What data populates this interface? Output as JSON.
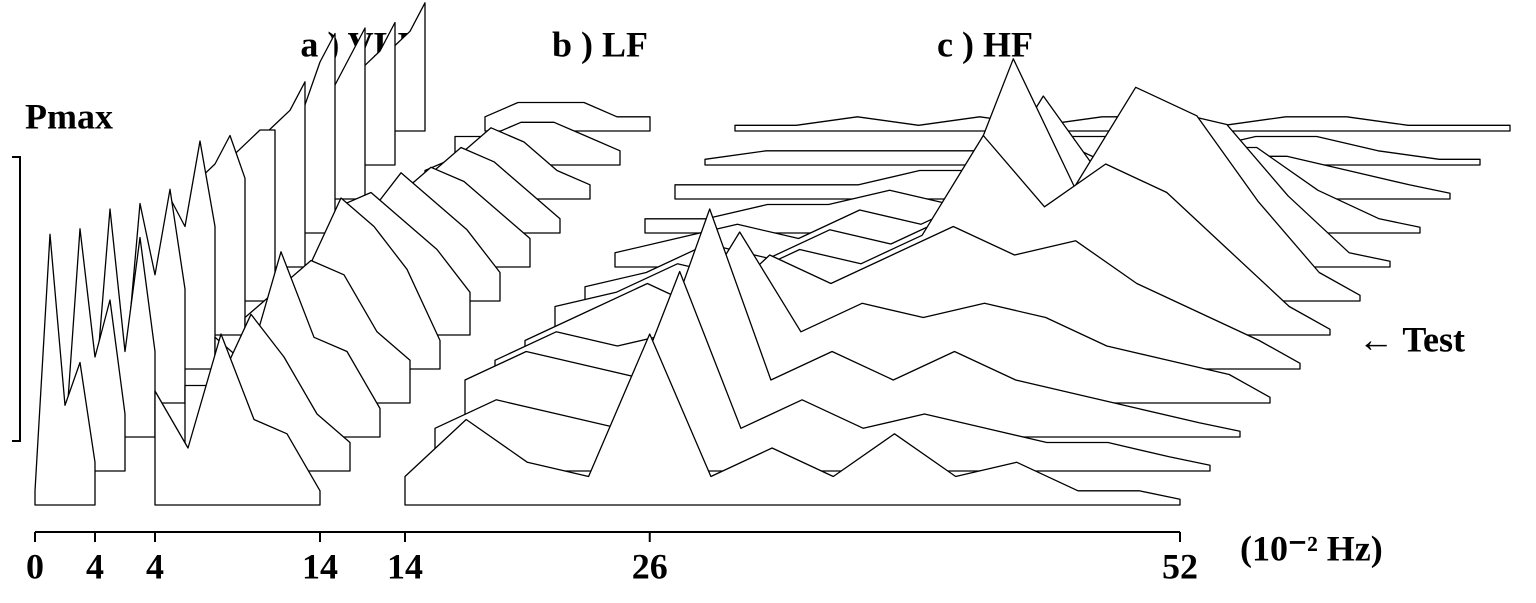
{
  "chart_data": {
    "type": "waterfall",
    "y_label": "Pmax",
    "x_label": "(10⁻² Hz)",
    "annotation": "← Test",
    "color": "#000000",
    "ylim": [
      0,
      1
    ],
    "panels": [
      {
        "title": "a ) VLF",
        "xlim": [
          0,
          4
        ],
        "xticks": [
          0,
          4
        ],
        "x": [
          0,
          1,
          2,
          3,
          4
        ],
        "traces": [
          [
            0.05,
            0.95,
            0.35,
            0.5,
            0.15
          ],
          [
            0.1,
            0.85,
            0.4,
            0.6,
            0.2
          ],
          [
            0.15,
            0.8,
            0.3,
            0.7,
            0.3
          ],
          [
            0.1,
            0.7,
            0.45,
            0.75,
            0.4
          ],
          [
            0.2,
            0.6,
            0.5,
            0.8,
            0.5
          ],
          [
            0.15,
            0.55,
            0.6,
            0.7,
            0.55
          ],
          [
            0.25,
            0.5,
            0.55,
            0.6,
            0.6
          ],
          [
            0.2,
            0.45,
            0.5,
            0.55,
            0.65
          ],
          [
            0.3,
            0.4,
            0.45,
            0.6,
            0.7
          ],
          [
            0.25,
            0.35,
            0.4,
            0.5,
            0.6
          ],
          [
            0.2,
            0.3,
            0.35,
            0.4,
            0.5
          ],
          [
            0.15,
            0.25,
            0.3,
            0.35,
            0.45
          ]
        ]
      },
      {
        "title": "b ) LF",
        "xlim": [
          4,
          14
        ],
        "xticks": [
          4,
          14
        ],
        "x": [
          4,
          6,
          8,
          10,
          12,
          14
        ],
        "traces": [
          [
            0.4,
            0.2,
            0.6,
            0.3,
            0.25,
            0.05
          ],
          [
            0.3,
            0.3,
            0.55,
            0.4,
            0.2,
            0.1
          ],
          [
            0.35,
            0.25,
            0.65,
            0.35,
            0.3,
            0.1
          ],
          [
            0.3,
            0.4,
            0.5,
            0.45,
            0.25,
            0.15
          ],
          [
            0.25,
            0.35,
            0.6,
            0.5,
            0.35,
            0.1
          ],
          [
            0.2,
            0.45,
            0.5,
            0.4,
            0.3,
            0.15
          ],
          [
            0.25,
            0.3,
            0.45,
            0.35,
            0.25,
            0.1
          ],
          [
            0.2,
            0.25,
            0.35,
            0.3,
            0.2,
            0.1
          ],
          [
            0.15,
            0.2,
            0.3,
            0.25,
            0.15,
            0.05
          ],
          [
            0.1,
            0.15,
            0.25,
            0.2,
            0.1,
            0.05
          ],
          [
            0.1,
            0.1,
            0.15,
            0.15,
            0.1,
            0.05
          ],
          [
            0.05,
            0.1,
            0.1,
            0.1,
            0.05,
            0.05
          ]
        ]
      },
      {
        "title": "c ) HF",
        "xlim": [
          14,
          52
        ],
        "xticks": [
          14,
          26,
          52
        ],
        "x": [
          14,
          17,
          20,
          23,
          26,
          29,
          32,
          35,
          38,
          41,
          44,
          47,
          50,
          52
        ],
        "traces": [
          [
            0.1,
            0.3,
            0.15,
            0.1,
            0.6,
            0.1,
            0.2,
            0.1,
            0.25,
            0.1,
            0.15,
            0.05,
            0.05,
            0.02
          ],
          [
            0.15,
            0.25,
            0.2,
            0.15,
            0.7,
            0.15,
            0.25,
            0.15,
            0.2,
            0.15,
            0.1,
            0.1,
            0.05,
            0.02
          ],
          [
            0.2,
            0.3,
            0.25,
            0.2,
            0.8,
            0.2,
            0.3,
            0.2,
            0.3,
            0.2,
            0.15,
            0.1,
            0.05,
            0.02
          ],
          [
            0.15,
            0.25,
            0.2,
            0.25,
            0.6,
            0.25,
            0.35,
            0.3,
            0.35,
            0.3,
            0.2,
            0.15,
            0.1,
            0.02
          ],
          [
            0.1,
            0.2,
            0.3,
            0.2,
            0.4,
            0.3,
            0.4,
            0.5,
            0.4,
            0.45,
            0.3,
            0.2,
            0.1,
            0.02
          ],
          [
            0.1,
            0.15,
            0.25,
            0.2,
            0.3,
            0.25,
            0.35,
            0.7,
            0.45,
            0.6,
            0.5,
            0.3,
            0.1,
            0.02
          ],
          [
            0.05,
            0.1,
            0.2,
            0.15,
            0.25,
            0.2,
            0.3,
            0.85,
            0.4,
            0.75,
            0.65,
            0.35,
            0.1,
            0.02
          ],
          [
            0.05,
            0.1,
            0.15,
            0.1,
            0.2,
            0.15,
            0.25,
            0.6,
            0.3,
            0.55,
            0.5,
            0.25,
            0.05,
            0.02
          ],
          [
            0.05,
            0.05,
            0.1,
            0.1,
            0.15,
            0.1,
            0.2,
            0.3,
            0.2,
            0.3,
            0.3,
            0.15,
            0.05,
            0.02
          ],
          [
            0.05,
            0.05,
            0.05,
            0.05,
            0.1,
            0.1,
            0.1,
            0.15,
            0.1,
            0.15,
            0.15,
            0.1,
            0.05,
            0.02
          ],
          [
            0.02,
            0.05,
            0.05,
            0.05,
            0.05,
            0.05,
            0.1,
            0.1,
            0.05,
            0.1,
            0.1,
            0.05,
            0.02,
            0.02
          ],
          [
            0.02,
            0.02,
            0.05,
            0.02,
            0.05,
            0.02,
            0.05,
            0.05,
            0.02,
            0.05,
            0.05,
            0.02,
            0.02,
            0.02
          ]
        ]
      }
    ]
  }
}
